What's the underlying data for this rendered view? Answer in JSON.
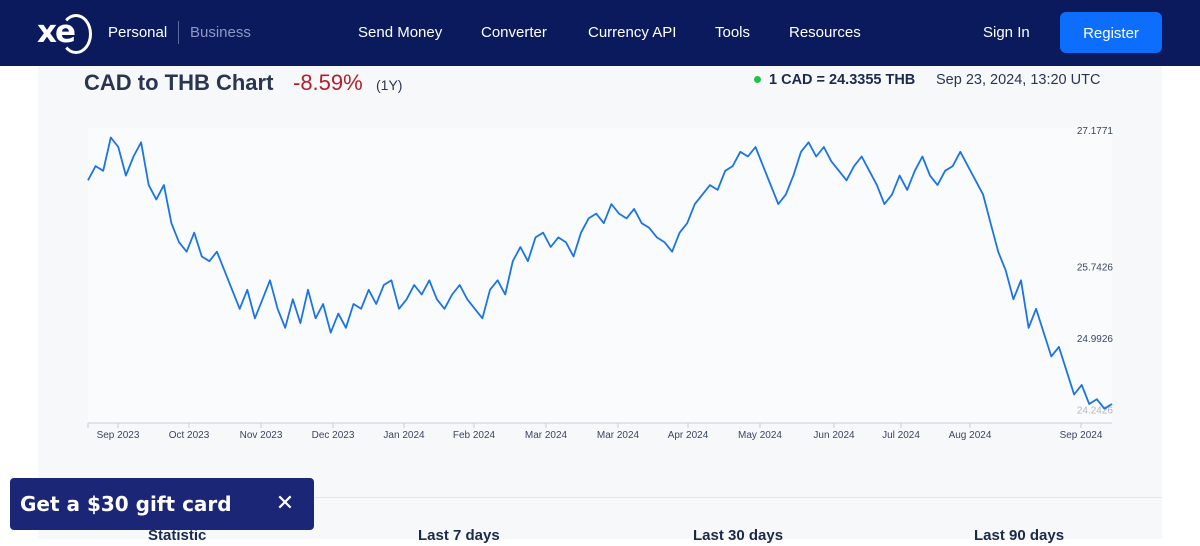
{
  "nav": {
    "logo": "xe",
    "segments": [
      "Personal",
      "Business"
    ],
    "links": [
      "Send Money",
      "Converter",
      "Currency API",
      "Tools",
      "Resources"
    ],
    "sign_in": "Sign In",
    "register": "Register"
  },
  "chart_header": {
    "title": "CAD to THB Chart",
    "change": "-8.59%",
    "period": "(1Y)",
    "rate": "1 CAD = 24.3355 THB",
    "timestamp": "Sep 23, 2024, 13:20 UTC",
    "status_color": "#21c04a"
  },
  "chart_data": {
    "type": "line",
    "title": "CAD to THB Chart",
    "x_tick_labels": [
      "Sep 2023",
      "Oct 2023",
      "Nov 2023",
      "Dec 2023",
      "Jan 2024",
      "Feb 2024",
      "Mar 2024",
      "Mar 2024",
      "Apr 2024",
      "May 2024",
      "Jun 2024",
      "Jul 2024",
      "Aug 2024",
      "Sep 2024"
    ],
    "y_tick_labels": [
      "27.1771",
      "25.7426",
      "24.9926",
      "24.2426"
    ],
    "y_ticks": [
      27.1771,
      25.7426,
      24.9926,
      24.2426
    ],
    "ylim": [
      24.1,
      27.2
    ],
    "line_color": "#1b74e4",
    "series": [
      {
        "values": [
          26.65,
          26.8,
          26.75,
          27.1,
          27.0,
          26.7,
          26.9,
          27.05,
          26.6,
          26.45,
          26.6,
          26.2,
          26.0,
          25.9,
          26.1,
          25.85,
          25.8,
          25.9,
          25.7,
          25.5,
          25.3,
          25.5,
          25.2,
          25.4,
          25.6,
          25.3,
          25.1,
          25.4,
          25.15,
          25.5,
          25.2,
          25.35,
          25.05,
          25.25,
          25.1,
          25.35,
          25.3,
          25.5,
          25.35,
          25.55,
          25.6,
          25.3,
          25.4,
          25.55,
          25.45,
          25.6,
          25.4,
          25.3,
          25.45,
          25.55,
          25.4,
          25.3,
          25.2,
          25.5,
          25.6,
          25.45,
          25.8,
          25.95,
          25.8,
          26.05,
          26.1,
          25.95,
          26.05,
          26.0,
          25.85,
          26.1,
          26.25,
          26.3,
          26.2,
          26.4,
          26.3,
          26.25,
          26.35,
          26.2,
          26.15,
          26.05,
          26.0,
          25.9,
          26.1,
          26.2,
          26.4,
          26.5,
          26.6,
          26.55,
          26.75,
          26.8,
          26.95,
          26.9,
          27.0,
          26.8,
          26.6,
          26.4,
          26.5,
          26.7,
          26.95,
          27.05,
          26.9,
          27.0,
          26.85,
          26.75,
          26.65,
          26.8,
          26.9,
          26.75,
          26.6,
          26.4,
          26.5,
          26.7,
          26.55,
          26.75,
          26.9,
          26.7,
          26.6,
          26.75,
          26.8,
          26.95,
          26.8,
          26.65,
          26.5,
          26.2,
          25.9,
          25.7,
          25.4,
          25.6,
          25.1,
          25.3,
          25.05,
          24.8,
          24.9,
          24.65,
          24.4,
          24.5,
          24.3,
          24.35,
          24.25,
          24.3
        ]
      }
    ]
  },
  "stats": {
    "headers": [
      "Statistic",
      "Last 7 days",
      "Last 30 days",
      "Last 90 days"
    ]
  },
  "banner": {
    "text": "Get a $30 gift card",
    "close": "✕"
  }
}
